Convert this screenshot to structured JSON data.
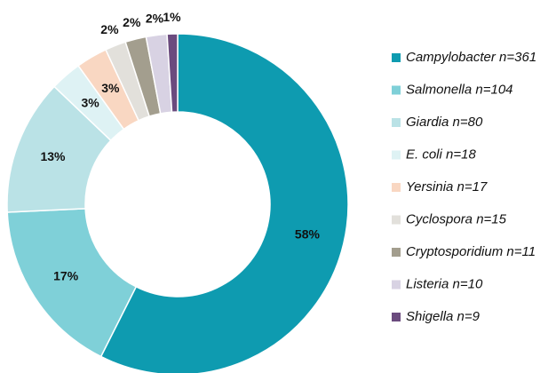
{
  "chart_data": {
    "type": "donut",
    "categories": [
      "Campylobacter n=361",
      "Salmonella n=104",
      "Giardia n=80",
      "E. coli n=18",
      "Yersinia n=17",
      "Cyclospora n=15",
      "Cryptosporidium n=11",
      "Listeria n=10",
      "Shigella n=9"
    ],
    "values": [
      58,
      17,
      13,
      3,
      3,
      2,
      2,
      2,
      1
    ],
    "value_labels": [
      "58%",
      "17%",
      "13%",
      "3%",
      "3%",
      "2%",
      "2%",
      "2%",
      "1%"
    ],
    "colors": [
      "#0e9bb0",
      "#7fd0d8",
      "#bae2e6",
      "#def2f4",
      "#f9d7c2",
      "#e2e0db",
      "#a39e8e",
      "#d8d2e3",
      "#6b4b7e"
    ],
    "legend": "right"
  }
}
